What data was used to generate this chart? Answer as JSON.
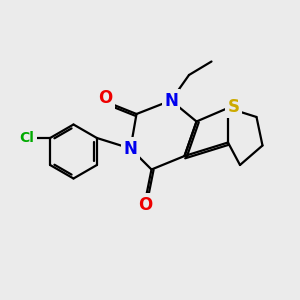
{
  "background_color": "#ebebeb",
  "atom_colors": {
    "C": "#000000",
    "N": "#0000ee",
    "O": "#ee0000",
    "S": "#ccaa00",
    "Cl": "#00aa00"
  },
  "bond_color": "#000000",
  "bond_width": 1.6,
  "font_size_atoms": 12
}
